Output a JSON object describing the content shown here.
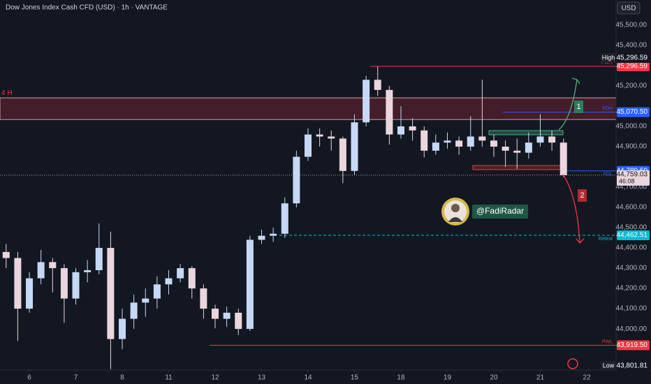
{
  "header": {
    "title": "Dow Jones Index Cash CFD (USD) · 1h · VANTAGE",
    "currency": "USD"
  },
  "chart_data": {
    "type": "candlestick",
    "x": [
      -0.5,
      -0.25,
      0,
      0.25,
      0.5,
      0.75,
      1,
      1.25,
      1.5,
      1.75,
      2,
      2.25,
      2.5,
      2.75,
      3,
      3.25,
      3.5,
      3.75,
      4,
      4.25,
      4.5,
      4.75,
      5,
      5.25,
      5.5,
      5.75,
      6,
      6.25,
      6.5,
      6.75,
      7,
      7.25,
      7.5,
      7.75,
      8,
      8.25,
      8.5,
      8.75,
      9,
      9.25,
      9.5,
      9.75,
      10,
      10.25,
      10.5,
      10.75,
      11,
      11.25,
      11.5
    ],
    "open": [
      44380,
      44350,
      44100,
      44250,
      44330,
      44300,
      44150,
      44280,
      44290,
      44400,
      43950,
      44050,
      44130,
      44150,
      44220,
      44250,
      44300,
      44200,
      44100,
      44050,
      44080,
      44000,
      44440,
      44460,
      44470,
      44620,
      44850,
      44960,
      44950,
      44940,
      44780,
      45020,
      45230,
      45180,
      44960,
      45000,
      44980,
      44880,
      44920,
      44930,
      44900,
      44950,
      44930,
      44900,
      44880,
      44870,
      44920,
      44950,
      44920
    ],
    "high": [
      44420,
      44380,
      44280,
      44390,
      44350,
      44320,
      44300,
      44340,
      44521,
      44480,
      44100,
      44170,
      44200,
      44260,
      44290,
      44320,
      44310,
      44220,
      44120,
      44110,
      44100,
      44460,
      44490,
      44500,
      44650,
      44880,
      44990,
      44990,
      44980,
      44950,
      45060,
      45250,
      45296.59,
      45200,
      45100,
      45040,
      45000,
      44960,
      44970,
      44950,
      45050,
      45230,
      44960,
      44930,
      44940,
      44970,
      45060,
      44980,
      44940
    ],
    "low": [
      44300,
      43940,
      44080,
      44220,
      44180,
      44030,
      44120,
      44230,
      44270,
      43801.81,
      43900,
      44000,
      44060,
      44100,
      44170,
      44230,
      44150,
      44050,
      44003,
      44010,
      43970,
      43990,
      44420,
      44430,
      44450,
      44600,
      44830,
      44900,
      44880,
      44720,
      44760,
      45000,
      45150,
      44910,
      44940,
      44930,
      44848,
      44860,
      44890,
      44860,
      44880,
      44900,
      44850,
      44800,
      44790,
      44840,
      44900,
      44880,
      44750
    ],
    "close": [
      44350,
      44100,
      44250,
      44330,
      44300,
      44150,
      44280,
      44290,
      44400,
      43950,
      44050,
      44130,
      44150,
      44220,
      44250,
      44300,
      44200,
      44100,
      44050,
      44080,
      44000,
      44440,
      44460,
      44470,
      44620,
      44850,
      44960,
      44950,
      44940,
      44780,
      45020,
      45230,
      45180,
      44960,
      45000,
      44980,
      44880,
      44920,
      44930,
      44900,
      44950,
      44930,
      44900,
      44880,
      44870,
      44920,
      44950,
      44920,
      44759.03
    ],
    "up_color": "#c6d8f5",
    "down_color": "#ead6dc",
    "xlim": [
      -0.632,
      12.632
    ],
    "xticks": [
      {
        "value": 0,
        "label": "6"
      },
      {
        "value": 1,
        "label": "7"
      },
      {
        "value": 2,
        "label": "8"
      },
      {
        "value": 3,
        "label": "11"
      },
      {
        "value": 4,
        "label": "12"
      },
      {
        "value": 5,
        "label": "13"
      },
      {
        "value": 6,
        "label": "14"
      },
      {
        "value": 7,
        "label": "15"
      },
      {
        "value": 8,
        "label": "18"
      },
      {
        "value": 9,
        "label": "19"
      },
      {
        "value": 10,
        "label": "20"
      },
      {
        "value": 11,
        "label": "21"
      },
      {
        "value": 12,
        "label": "22"
      }
    ],
    "ylim": [
      43797,
      45624
    ],
    "yticks": [
      {
        "value": 45500,
        "label": "45,500.00"
      },
      {
        "value": 45400,
        "label": "45,400.00"
      },
      {
        "value": 45200,
        "label": "45,200.00"
      },
      {
        "value": 45000,
        "label": "45,000.00"
      },
      {
        "value": 44900,
        "label": "44,900.00"
      },
      {
        "value": 44700,
        "label": "44,700.00"
      },
      {
        "value": 44600,
        "label": "44,600.00"
      },
      {
        "value": 44500,
        "label": "44,500.00"
      },
      {
        "value": 44400,
        "label": "44,400.00"
      },
      {
        "value": 44300,
        "label": "44,300.00"
      },
      {
        "value": 44200,
        "label": "44,200.00"
      },
      {
        "value": 44100,
        "label": "44,100.00"
      },
      {
        "value": 44000,
        "label": "44,000.00"
      }
    ],
    "levels": [
      {
        "name": "PWH",
        "value": 45296.59,
        "label": "45,296.59",
        "color": "#f23645"
      },
      {
        "name": "PDH",
        "value": 45070.5,
        "label": "45,070.50",
        "color": "#2962ff"
      },
      {
        "name": "PDL",
        "value": 44780.5,
        "label": "44,780.50",
        "color": "#2962ff"
      },
      {
        "name": "Retest",
        "value": 44462.51,
        "label": "44,462.51",
        "color": "#00bcd4"
      },
      {
        "name": "PWL",
        "value": 43919.5,
        "label": "43,919.50",
        "color": "#f23645"
      }
    ],
    "last": {
      "value": 44759.03,
      "label": "44,759.03",
      "countdown": "46:08"
    },
    "extremes": [
      {
        "name": "High",
        "value": 45296.59,
        "label": "45,296.59"
      },
      {
        "name": "Low",
        "value": 43801.81,
        "label": "43,801.81"
      }
    ],
    "zone": {
      "label": "4 H",
      "low": 45034,
      "high": 45141,
      "color": "#f23645"
    },
    "annotations": [
      "1",
      "2"
    ],
    "author": "@FadiRadar"
  }
}
